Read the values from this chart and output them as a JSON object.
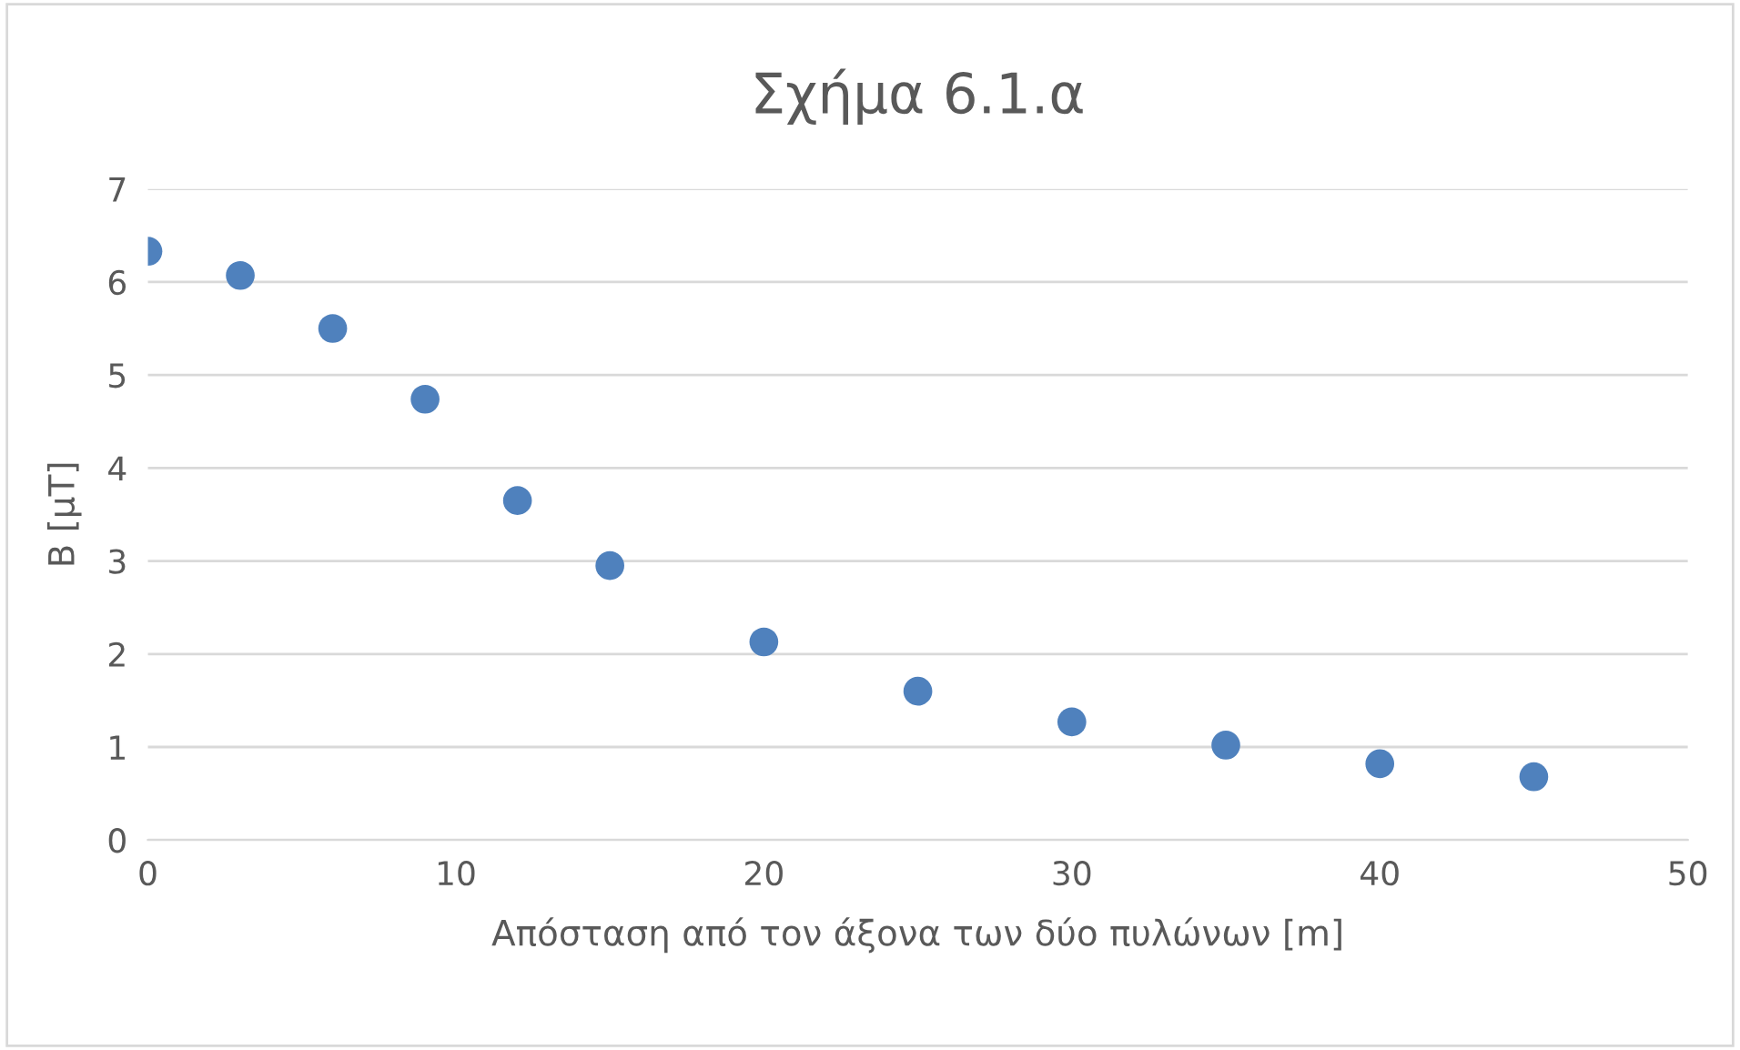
{
  "chart_data": {
    "type": "scatter",
    "title": "Σχήμα 6.1.α",
    "xlabel": "Απόσταση από τον άξονα των δύο πυλώνων [m]",
    "ylabel": "B [μT]",
    "x": [
      0,
      3,
      6,
      9,
      12,
      15,
      20,
      25,
      30,
      35,
      40,
      45
    ],
    "series": [
      {
        "color": "#4f81bd",
        "values": [
          6.33,
          6.07,
          5.5,
          4.74,
          3.65,
          2.95,
          2.13,
          1.6,
          1.27,
          1.02,
          0.82,
          0.68
        ]
      }
    ],
    "xlim": [
      0,
      50
    ],
    "xticks": [
      0,
      10,
      20,
      30,
      40,
      50
    ],
    "ylim": [
      0,
      7
    ],
    "yticks": [
      0,
      1,
      2,
      3,
      4,
      5,
      6,
      7
    ],
    "grid": "y",
    "marker": "circle"
  }
}
